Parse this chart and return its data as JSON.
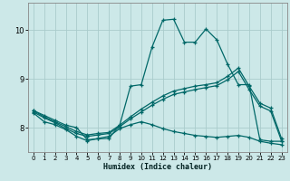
{
  "xlabel": "Humidex (Indice chaleur)",
  "bg_color": "#cce8e8",
  "grid_color": "#aacccc",
  "line_color": "#006868",
  "xlim": [
    -0.5,
    23.5
  ],
  "ylim": [
    7.5,
    10.55
  ],
  "xticks": [
    0,
    1,
    2,
    3,
    4,
    5,
    6,
    7,
    8,
    9,
    10,
    11,
    12,
    13,
    14,
    15,
    16,
    17,
    18,
    19,
    20,
    21,
    22,
    23
  ],
  "yticks": [
    8,
    9,
    10
  ],
  "line1_y": [
    8.35,
    8.25,
    8.15,
    8.05,
    8.0,
    7.75,
    7.77,
    7.78,
    8.05,
    8.85,
    8.88,
    9.65,
    10.2,
    10.22,
    9.75,
    9.75,
    10.02,
    9.8,
    9.3,
    8.88,
    8.88,
    7.75,
    7.72,
    7.72
  ],
  "line2_y": [
    8.35,
    8.22,
    8.12,
    8.02,
    7.92,
    7.85,
    7.88,
    7.9,
    8.05,
    8.22,
    8.38,
    8.52,
    8.65,
    8.75,
    8.8,
    8.85,
    8.88,
    8.92,
    9.05,
    9.22,
    8.85,
    8.5,
    8.4,
    7.78
  ],
  "line3_y": [
    8.32,
    8.2,
    8.1,
    7.98,
    7.88,
    7.82,
    7.85,
    7.88,
    8.02,
    8.18,
    8.32,
    8.46,
    8.58,
    8.68,
    8.73,
    8.78,
    8.82,
    8.86,
    8.98,
    9.15,
    8.78,
    8.44,
    8.34,
    7.73
  ],
  "line4_y": [
    8.3,
    8.12,
    8.06,
    7.96,
    7.82,
    7.73,
    7.78,
    7.82,
    7.98,
    8.06,
    8.12,
    8.06,
    7.98,
    7.92,
    7.88,
    7.84,
    7.82,
    7.8,
    7.82,
    7.84,
    7.8,
    7.72,
    7.68,
    7.65
  ]
}
